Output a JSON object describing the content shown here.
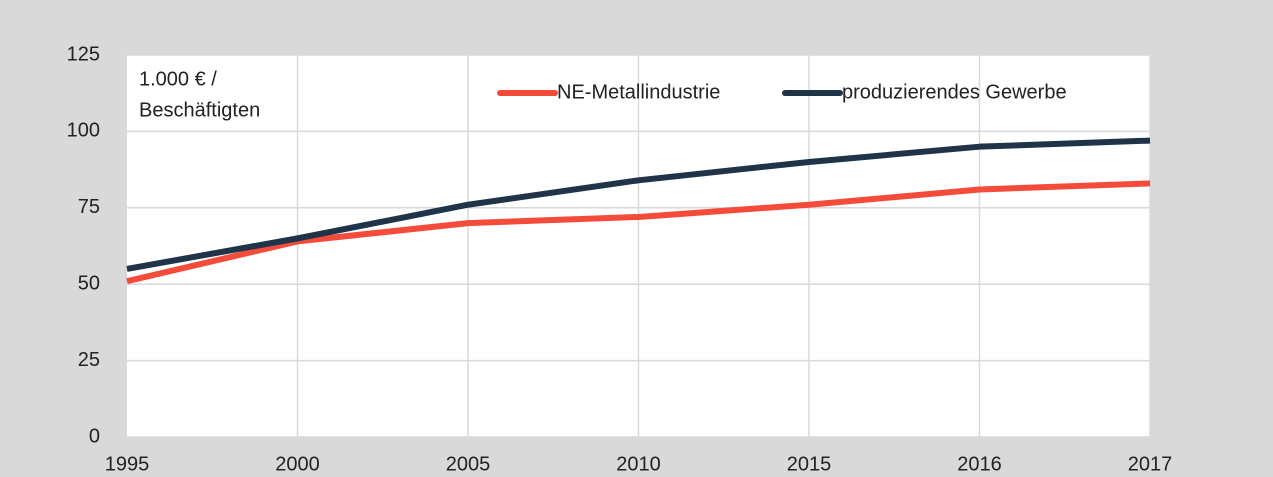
{
  "chart_data": {
    "type": "line",
    "ylabel_lines": [
      "1.000 € /",
      "Beschäftigten"
    ],
    "categories": [
      "1995",
      "2000",
      "2005",
      "2010",
      "2015",
      "2016",
      "2017"
    ],
    "series": [
      {
        "name": "NE-Metallindustrie",
        "color": "#f44b3a",
        "values": [
          51,
          64,
          70,
          72,
          76,
          81,
          83
        ]
      },
      {
        "name": "produzierendes Gewerbe",
        "color": "#1f3349",
        "values": [
          55,
          65,
          76,
          84,
          90,
          95,
          97
        ]
      }
    ],
    "ylim": [
      0,
      125
    ],
    "yticks": [
      0,
      25,
      50,
      75,
      100,
      125
    ],
    "grid": true,
    "legend": "top"
  }
}
